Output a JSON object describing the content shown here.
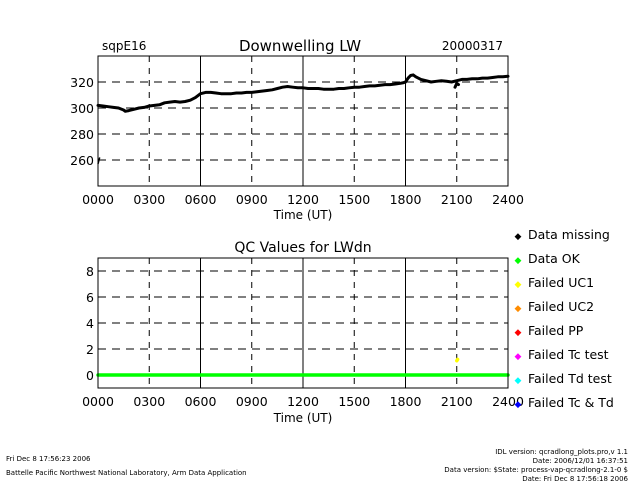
{
  "header": {
    "site": "sqpE16",
    "date": "20000317"
  },
  "chart_data": [
    {
      "type": "line",
      "title": "Downwelling LW",
      "xlabel": "Time (UT)",
      "ylabel": "",
      "xlim": [
        0,
        2400
      ],
      "ylim": [
        240,
        340
      ],
      "x_ticks": [
        "0000",
        "0300",
        "0600",
        "0900",
        "1200",
        "1500",
        "1800",
        "2100",
        "2400"
      ],
      "x_tick_values": [
        0,
        300,
        600,
        900,
        1200,
        1500,
        1800,
        2100,
        2400
      ],
      "y_ticks": [
        260,
        280,
        300,
        320
      ],
      "grid": "dashed",
      "series": [
        {
          "color": "#000000",
          "x": [
            0,
            30,
            60,
            90,
            120,
            150,
            160,
            180,
            210,
            240,
            270,
            300,
            330,
            360,
            390,
            420,
            450,
            480,
            510,
            540,
            570,
            600,
            630,
            660,
            690,
            720,
            750,
            780,
            810,
            840,
            870,
            900,
            930,
            960,
            990,
            1020,
            1050,
            1080,
            1110,
            1140,
            1170,
            1200,
            1230,
            1260,
            1290,
            1320,
            1350,
            1380,
            1410,
            1440,
            1470,
            1500,
            1530,
            1560,
            1590,
            1620,
            1650,
            1680,
            1710,
            1740,
            1770,
            1790,
            1800,
            1815,
            1830,
            1845,
            1860,
            1890,
            1920,
            1950,
            1980,
            2010,
            2040,
            2070,
            2100,
            2130,
            2160,
            2190,
            2220,
            2250,
            2280,
            2310,
            2340,
            2370,
            2400
          ],
          "values": [
            302,
            301.5,
            301,
            300.5,
            300,
            298.5,
            297.5,
            298,
            299,
            300,
            300.5,
            301.5,
            302,
            302.5,
            304,
            304.5,
            305,
            304.5,
            305,
            306,
            308,
            311,
            312,
            312,
            311.5,
            311,
            311,
            311,
            311.5,
            311.5,
            312,
            312,
            312.5,
            313,
            313.5,
            314,
            315,
            316,
            316.5,
            316,
            315.5,
            315.5,
            315,
            315,
            315,
            314.5,
            314.5,
            314.5,
            315,
            315,
            315.5,
            316,
            316,
            316.5,
            317,
            317,
            317.5,
            318,
            318,
            318.5,
            319,
            319.5,
            320,
            323,
            325,
            325.5,
            324,
            322,
            321,
            320,
            320.5,
            321,
            320.5,
            320,
            321,
            322,
            322,
            322.5,
            322.5,
            323,
            323,
            323.5,
            324,
            324,
            324.5
          ]
        },
        {
          "color": "#000000",
          "x": [
            2090,
            2100,
            2110
          ],
          "values": [
            316,
            319,
            318
          ]
        }
      ],
      "low_segment": {
        "x": [
          0,
          10
        ],
        "values": [
          257,
          262
        ]
      }
    },
    {
      "type": "line",
      "title": "QC Values for LWdn",
      "xlabel": "Time (UT)",
      "ylabel": "",
      "xlim": [
        0,
        2400
      ],
      "ylim": [
        -1,
        9
      ],
      "x_ticks": [
        "0000",
        "0300",
        "0600",
        "0900",
        "1200",
        "1500",
        "1800",
        "2100",
        "2400"
      ],
      "x_tick_values": [
        0,
        300,
        600,
        900,
        1200,
        1500,
        1800,
        2100,
        2400
      ],
      "y_ticks": [
        0,
        2,
        4,
        6,
        8
      ],
      "grid": "dashed",
      "series": [
        {
          "color": "#00ff00",
          "x": [
            0,
            2400
          ],
          "values": [
            0,
            0
          ]
        },
        {
          "color": "#ffff00",
          "x": [
            2100,
            2105
          ],
          "values": [
            1.1,
            1.2
          ]
        }
      ]
    }
  ],
  "legend": {
    "items": [
      {
        "label": "Data missing",
        "marker": "◆",
        "color": "#000000"
      },
      {
        "label": "Data OK",
        "marker": "◆",
        "color": "#00ff00"
      },
      {
        "label": "Failed UC1",
        "marker": "◆",
        "color": "#ffff00"
      },
      {
        "label": "Failed UC2",
        "marker": "◆",
        "color": "#ff8c00"
      },
      {
        "label": "Failed PP",
        "marker": "◆",
        "color": "#ff0000"
      },
      {
        "label": "Failed Tc test",
        "marker": "◆",
        "color": "#ff00ff"
      },
      {
        "label": "Failed Td test",
        "marker": "◆",
        "color": "#00ffff"
      },
      {
        "label": "Failed Tc & Td",
        "marker": "◆",
        "color": "#0000ff"
      }
    ]
  },
  "footer": {
    "left_line1": "Fri Dec  8 17:56:23 2006",
    "left_line2": "Battelle Pacific Northwest National Laboratory, Arm Data Application",
    "right_line1": "IDL version: qcradlong_plots.pro,v 1.1",
    "right_line2": "Date: 2006/12/01 16:37:51",
    "right_line3": "Data version: $State: process-vap-qcradlong-2.1-0 $",
    "right_line4": "Date: Fri Dec  8 17:56:18 2006"
  }
}
